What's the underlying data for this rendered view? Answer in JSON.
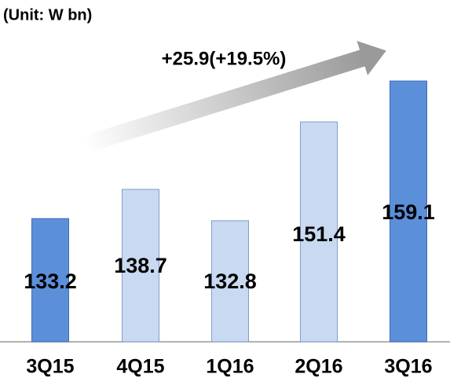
{
  "chart_data": {
    "type": "bar",
    "subtitle": "(Unit: W bn)",
    "annotation": "+25.9(+19.5%)",
    "categories": [
      "3Q15",
      "4Q15",
      "1Q16",
      "2Q16",
      "3Q16"
    ],
    "values": [
      133.2,
      138.7,
      132.8,
      151.4,
      159.1
    ],
    "colors": [
      "#5b8fd9",
      "#c9d9f1",
      "#c9d9f1",
      "#c9d9f1",
      "#5b8fd9"
    ],
    "ylim": [
      110,
      160
    ]
  }
}
